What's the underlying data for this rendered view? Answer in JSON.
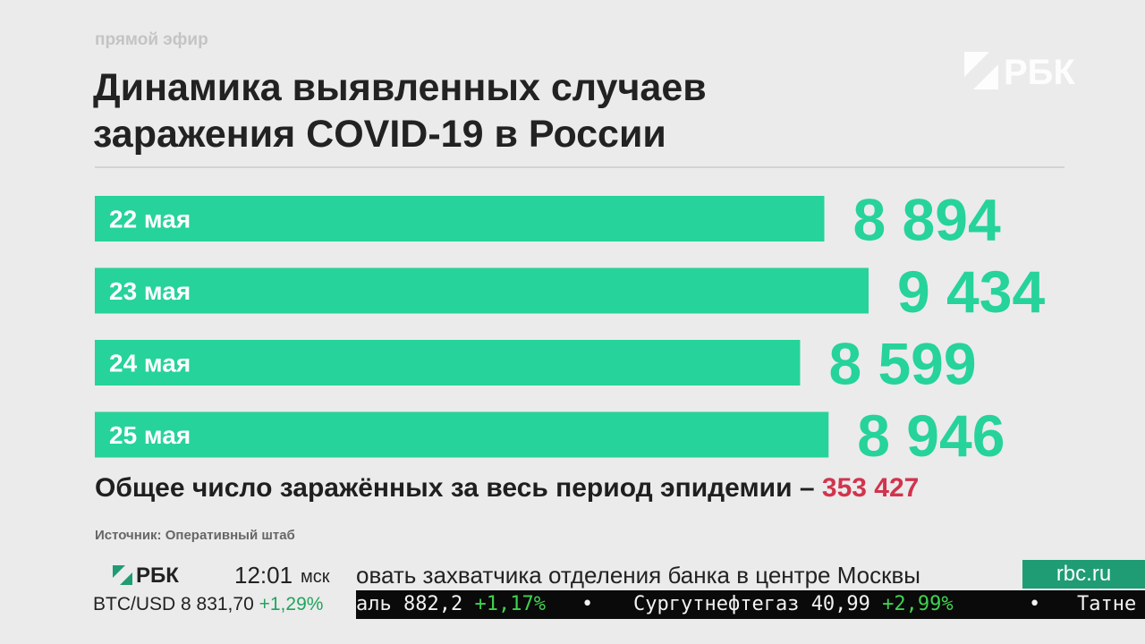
{
  "header": {
    "live_label": "прямой эфир",
    "title_line1": "Динамика выявленных случаев",
    "title_line2": "заражения COVID-19 в России",
    "channel_logo": "РБК"
  },
  "chart_data": {
    "type": "bar",
    "orientation": "horizontal",
    "categories": [
      "22 мая",
      "23 мая",
      "24 мая",
      "25 мая"
    ],
    "values": [
      8894,
      9434,
      8599,
      8946
    ],
    "value_labels": [
      "8 894",
      "9 434",
      "8 599",
      "8 946"
    ],
    "bar_color": "#26d39a",
    "label_color": "#26d39a",
    "category_label_color": "#ffffff",
    "title": "",
    "xlabel": "",
    "ylabel": ""
  },
  "summary": {
    "total_text": "Общее число заражённых за весь период эпидемии – ",
    "total_value": "353 427",
    "total_color": "#d1344e",
    "source": "Источник: Оперативный штаб"
  },
  "ticker": {
    "logo_text": "РБК",
    "time": "12:01",
    "timezone": "мск",
    "headline": "овать захватчика отделения банка в центре Москвы",
    "site": "rbc.ru",
    "site_bg_color": "#1f9c74",
    "btc_label": "BTC/USD 8 831,70",
    "btc_change": "+1,29%",
    "stocks": [
      {
        "name": "аль",
        "price": "882,2",
        "change": "+1,17%"
      },
      {
        "name": "Сургутнефтегаз",
        "price": "40,99",
        "change": "+2,99%"
      },
      {
        "name": "Татне",
        "price": "",
        "change": ""
      }
    ],
    "separator": "•",
    "positive_color": "#3fd24f"
  }
}
